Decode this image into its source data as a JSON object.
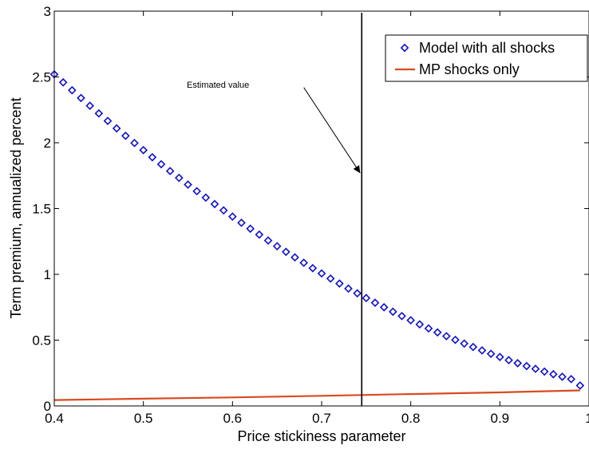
{
  "chart_data": {
    "type": "line",
    "xlabel": "Price stickiness parameter",
    "ylabel": "Term premium, annualized percent",
    "xlim": [
      0.4,
      1.0
    ],
    "ylim": [
      0,
      3
    ],
    "x_ticks": [
      "0.4",
      "0.5",
      "0.6",
      "0.7",
      "0.8",
      "0.9",
      "1"
    ],
    "y_ticks": [
      "0",
      "0.5",
      "1",
      "1.5",
      "2",
      "2.5",
      "3"
    ],
    "x_tick_values": [
      0.4,
      0.5,
      0.6,
      0.7,
      0.8,
      0.9,
      1.0
    ],
    "y_tick_values": [
      0,
      0.5,
      1,
      1.5,
      2,
      2.5,
      3
    ],
    "grid": false,
    "legend_position": "top-right",
    "series": [
      {
        "name": "Model with all shocks",
        "style": "markers",
        "marker": "diamond",
        "color": "#1010cc",
        "x": [
          0.4,
          0.41,
          0.42,
          0.43,
          0.44,
          0.45,
          0.46,
          0.47,
          0.48,
          0.49,
          0.5,
          0.51,
          0.52,
          0.53,
          0.54,
          0.55,
          0.56,
          0.57,
          0.58,
          0.59,
          0.6,
          0.61,
          0.62,
          0.63,
          0.64,
          0.65,
          0.66,
          0.67,
          0.68,
          0.69,
          0.7,
          0.71,
          0.72,
          0.73,
          0.74,
          0.75,
          0.76,
          0.77,
          0.78,
          0.79,
          0.8,
          0.81,
          0.82,
          0.83,
          0.84,
          0.85,
          0.86,
          0.87,
          0.88,
          0.89,
          0.9,
          0.91,
          0.92,
          0.93,
          0.94,
          0.95,
          0.96,
          0.97,
          0.98,
          0.99
        ],
        "values": [
          2.52,
          2.459,
          2.399,
          2.34,
          2.281,
          2.223,
          2.166,
          2.109,
          2.053,
          1.998,
          1.944,
          1.89,
          1.837,
          1.785,
          1.733,
          1.682,
          1.632,
          1.583,
          1.534,
          1.486,
          1.439,
          1.392,
          1.347,
          1.302,
          1.257,
          1.214,
          1.171,
          1.129,
          1.088,
          1.047,
          1.007,
          0.968,
          0.93,
          0.892,
          0.856,
          0.82,
          0.784,
          0.75,
          0.716,
          0.683,
          0.651,
          0.62,
          0.589,
          0.559,
          0.53,
          0.502,
          0.474,
          0.448,
          0.422,
          0.396,
          0.372,
          0.348,
          0.325,
          0.303,
          0.282,
          0.261,
          0.241,
          0.222,
          0.204,
          0.155
        ]
      },
      {
        "name": "MP shocks only",
        "style": "line",
        "color": "#d94a1e",
        "x": [
          0.4,
          0.5,
          0.6,
          0.7,
          0.8,
          0.9,
          0.99
        ],
        "values": [
          0.045,
          0.055,
          0.065,
          0.077,
          0.09,
          0.103,
          0.118
        ]
      }
    ],
    "annotations": [
      {
        "text": "Estimated value",
        "type": "vertical-line",
        "x": 0.745,
        "arrow_from": [
          0.68,
          2.42
        ],
        "arrow_to": [
          0.745,
          1.77
        ]
      }
    ]
  }
}
